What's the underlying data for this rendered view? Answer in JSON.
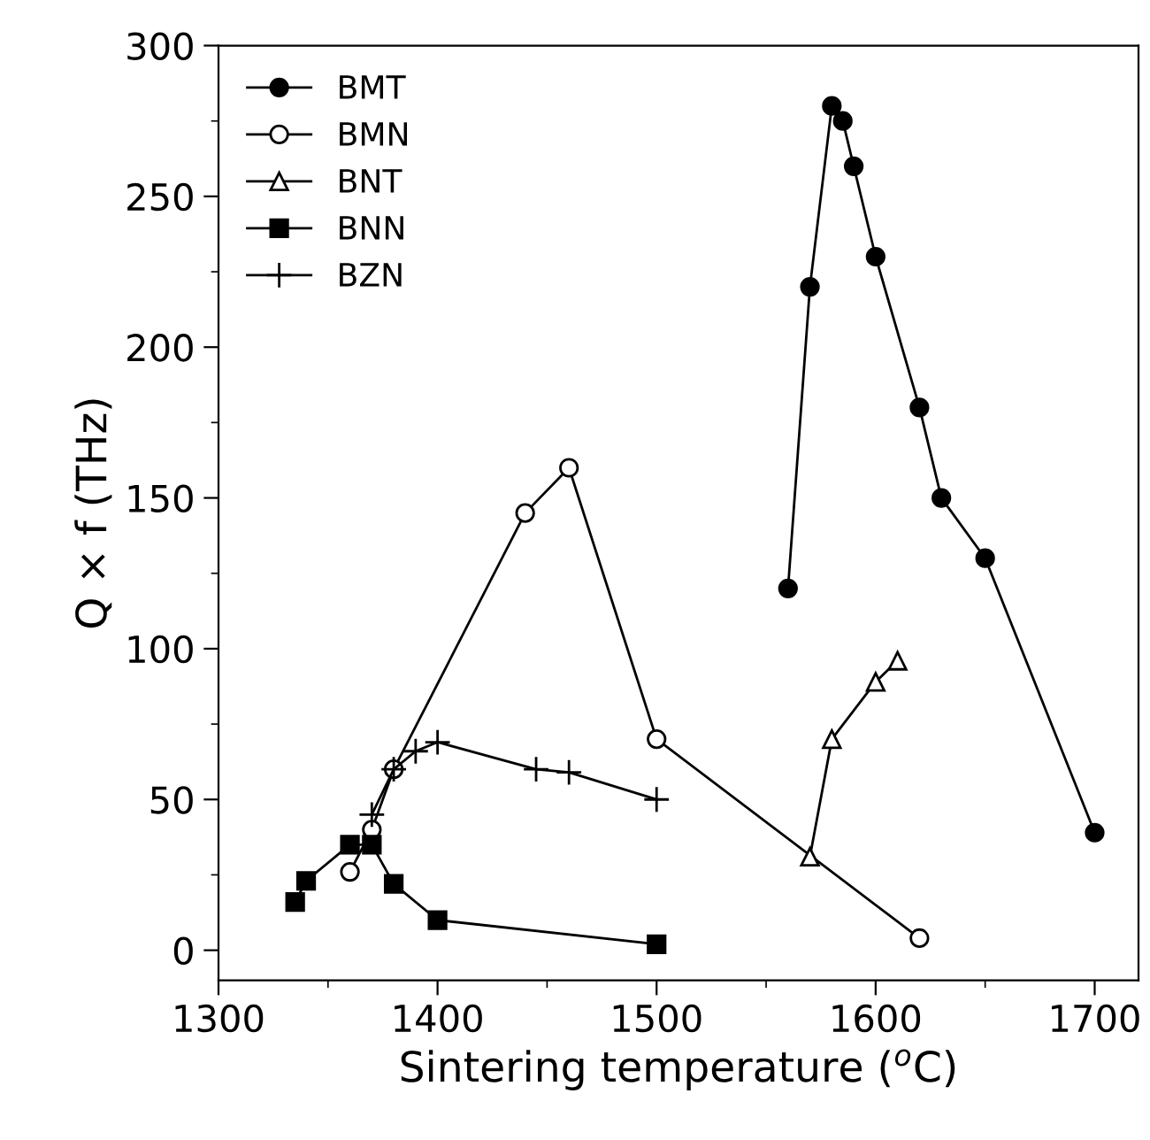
{
  "chart_data": {
    "type": "line",
    "xlabel": "Sintering temperature ($^{o}$C)",
    "ylabel": "Q × f (THz)",
    "xlim": [
      1300,
      1720
    ],
    "ylim": [
      -10,
      300
    ],
    "xticks": [
      1300,
      {
        "value": 1350,
        "label": null
      },
      1400,
      {
        "value": 1450,
        "label": null
      },
      1500,
      {
        "value": 1550,
        "label": null
      },
      1600,
      {
        "value": 1650,
        "label": null
      },
      1700
    ],
    "yticks": [
      0,
      {
        "value": 25,
        "label": null
      },
      50,
      {
        "value": 75,
        "label": null
      },
      100,
      {
        "value": 125,
        "label": null
      },
      150,
      {
        "value": 175,
        "label": null
      },
      200,
      {
        "value": 225,
        "label": null
      },
      250,
      {
        "value": 275,
        "label": null
      },
      300
    ],
    "legend": "top left",
    "grid": false,
    "line_style": "solid",
    "series": [
      {
        "name": "BMT",
        "color": "#000000",
        "marker": "circle",
        "x": [
          1560,
          1570,
          1580,
          1585,
          1590,
          1600,
          1620,
          1630,
          1650,
          1700
        ],
        "values": [
          120,
          220,
          280,
          275,
          260,
          230,
          180,
          150,
          130,
          39
        ]
      },
      {
        "name": "BMN",
        "color": "#000000",
        "marker": "circle",
        "x": [
          1360,
          1370,
          1380,
          1440,
          1460,
          1500,
          1620
        ],
        "values": [
          26,
          40,
          60,
          145,
          160,
          70,
          4
        ]
      },
      {
        "name": "BNT",
        "color": "#000000",
        "marker": "triangle",
        "x": [
          1570,
          1580,
          1600,
          1610
        ],
        "values": [
          31,
          70,
          89,
          96
        ]
      },
      {
        "name": "BNN",
        "color": "#000000",
        "marker": "square",
        "x": [
          1335,
          1340,
          1360,
          1370,
          1380,
          1400,
          1500
        ],
        "values": [
          16,
          23,
          35,
          35,
          22,
          10,
          2
        ]
      },
      {
        "name": "BZN",
        "color": "#000000",
        "marker": "cross",
        "x": [
          1370,
          1380,
          1390,
          1400,
          1445,
          1460,
          1500
        ],
        "values": [
          45,
          60,
          66,
          69,
          60,
          59,
          50
        ]
      }
    ]
  }
}
